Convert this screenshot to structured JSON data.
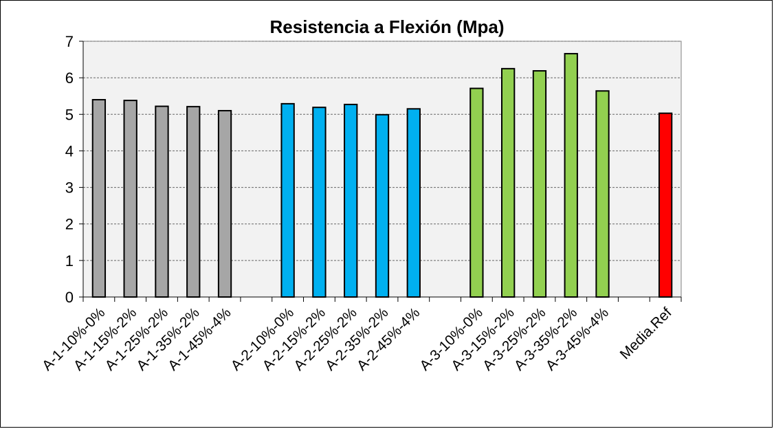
{
  "chart_data": {
    "type": "bar",
    "title": "Resistencia a Flexión (Mpa)",
    "xlabel": "",
    "ylabel": "",
    "ylim": [
      0,
      7
    ],
    "yticks": [
      0,
      1,
      2,
      3,
      4,
      5,
      6,
      7
    ],
    "grid": true,
    "legend": "none",
    "categories": [
      "A-1-10%-0%",
      "A-1-15%-2%",
      "A-1-25%-2%",
      "A-1-35%-2%",
      "A-1-45%-4%",
      "",
      "A-2-10%-0%",
      "A-2-15%-2%",
      "A-2-25%-2%",
      "A-2-35%-2%",
      "A-2-45%-4%",
      "",
      "A-3-10%-0%",
      "A-3-15%-2%",
      "A-3-25%-2%",
      "A-3-35%-2%",
      "A-3-45%-4%",
      "",
      "Media.Ref"
    ],
    "values": [
      5.4,
      5.38,
      5.22,
      5.21,
      5.1,
      null,
      5.29,
      5.19,
      5.27,
      4.99,
      5.15,
      null,
      5.71,
      6.25,
      6.19,
      6.66,
      5.64,
      null,
      5.03
    ],
    "colors": [
      "#a6a6a6",
      "#a6a6a6",
      "#a6a6a6",
      "#a6a6a6",
      "#a6a6a6",
      null,
      "#00b0f0",
      "#00b0f0",
      "#00b0f0",
      "#00b0f0",
      "#00b0f0",
      null,
      "#92d050",
      "#92d050",
      "#92d050",
      "#92d050",
      "#92d050",
      null,
      "#ff0000"
    ],
    "plot_background": "#f2f2f2"
  }
}
